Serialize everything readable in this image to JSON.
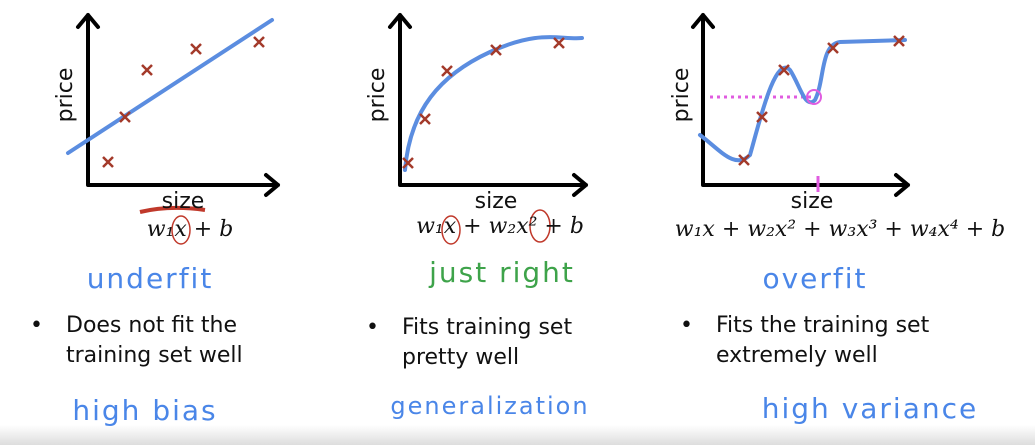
{
  "panels": [
    {
      "y_label": "price",
      "x_label": "size",
      "formula": "w₁x + b",
      "verdict": "underfit",
      "bullet": [
        "Does not fit the",
        "training set well"
      ],
      "term": "high bias"
    },
    {
      "y_label": "price",
      "x_label": "size",
      "formula": "w₁x + w₂x² + b",
      "verdict": "just right",
      "bullet": [
        "Fits training set",
        "pretty well"
      ],
      "term": "generalization"
    },
    {
      "y_label": "price",
      "x_label": "size",
      "formula": "w₁x + w₂x² + w₃x³ + w₄x⁴ + b",
      "verdict": "overfit",
      "bullet": [
        "Fits the training set",
        "extremely well"
      ],
      "term": "high variance"
    }
  ]
}
